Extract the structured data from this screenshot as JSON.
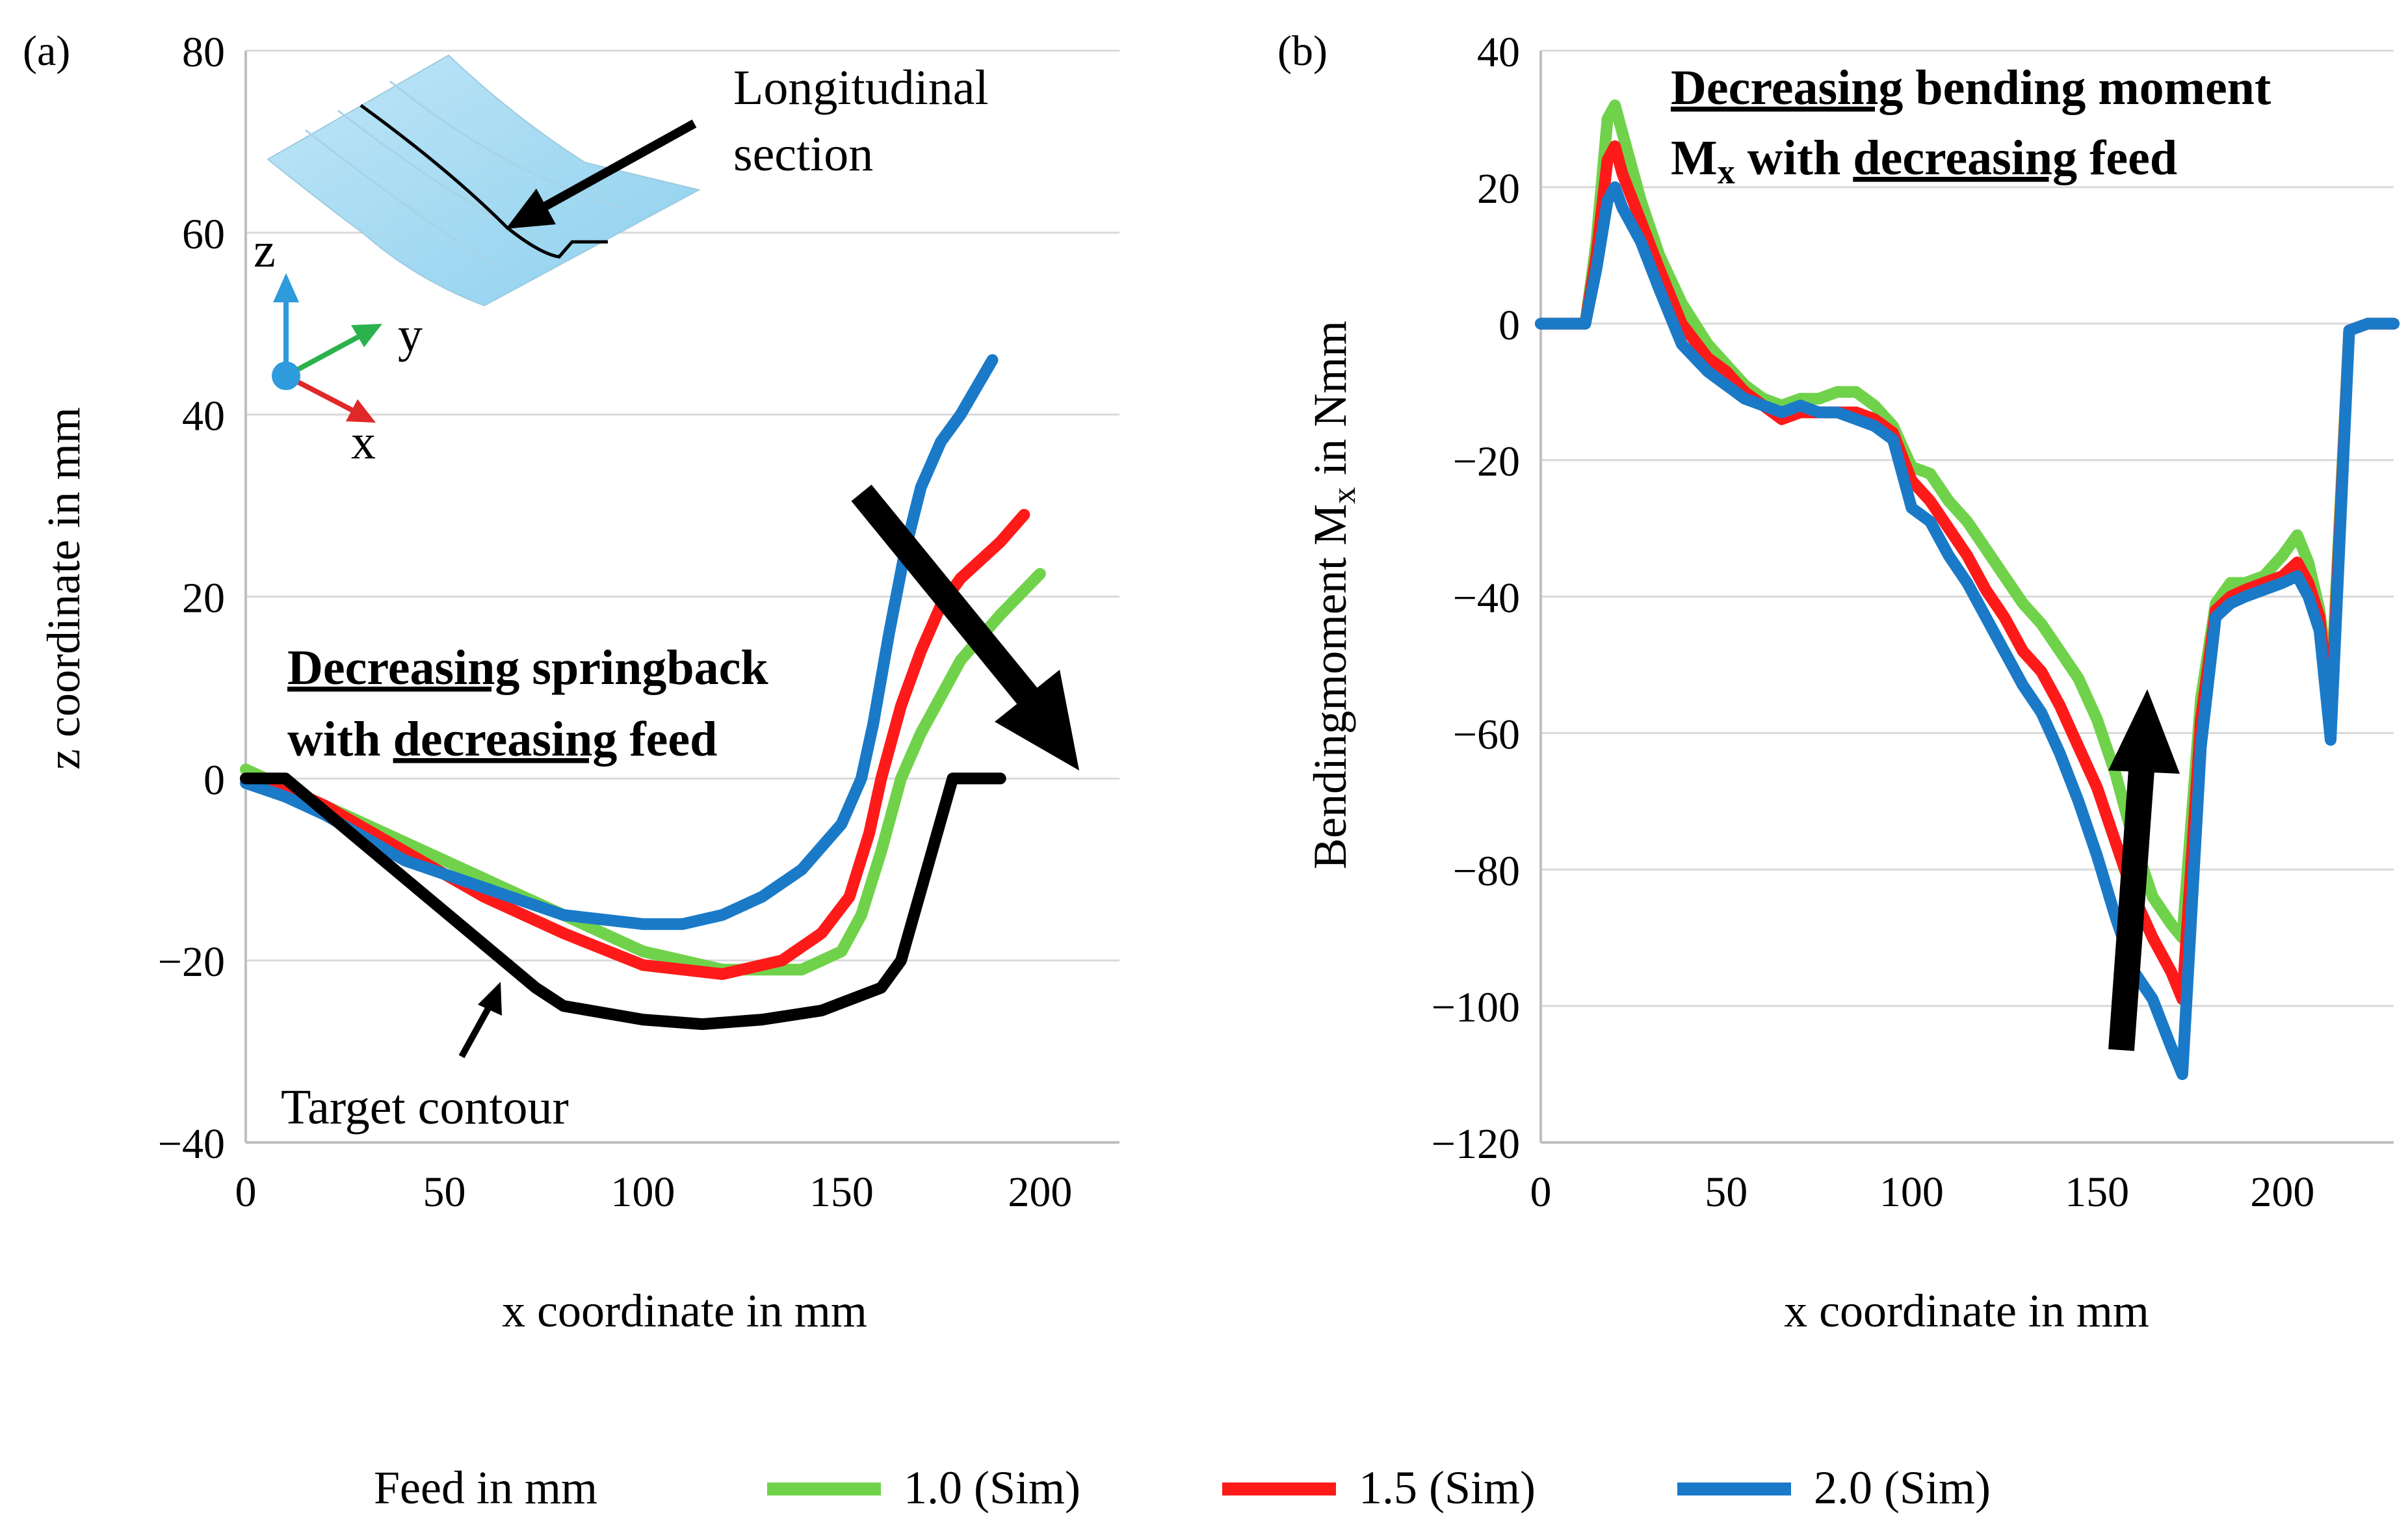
{
  "legend": {
    "title": "Feed in mm",
    "entries": [
      {
        "label": "1.0 (Sim)",
        "color": "#70D24B"
      },
      {
        "label": "1.5 (Sim)",
        "color": "#FF1A1A"
      },
      {
        "label": "2.0 (Sim)",
        "color": "#1A7AC8"
      }
    ]
  },
  "inset": {
    "label_line1": "Longitudinal",
    "label_line2": "section",
    "axis_x": "x",
    "axis_y": "y",
    "axis_z": "z"
  },
  "chart_data": [
    {
      "panel": "(a)",
      "type": "line",
      "xlabel": "x coordinate in mm",
      "ylabel": "z coordinate in mm",
      "xlim": [
        0,
        220
      ],
      "ylim": [
        -40,
        80
      ],
      "xticks": [
        0,
        50,
        100,
        150,
        200
      ],
      "yticks": [
        -40,
        -20,
        0,
        20,
        40,
        60,
        80
      ],
      "gridlines": "horizontal",
      "annotation": {
        "line1_underlined": "Decreasing",
        "line1_rest": " springback",
        "line2_prefix": "with ",
        "line2_underlined": "decreasing",
        "line2_rest": " feed"
      },
      "target_label": "Target contour",
      "series": [
        {
          "name": "1.0 (Sim)",
          "color": "#70D24B",
          "x": [
            0,
            10,
            20,
            40,
            60,
            80,
            100,
            120,
            140,
            150,
            155,
            160,
            165,
            170,
            175,
            180,
            190,
            200
          ],
          "y": [
            1,
            -1,
            -3,
            -7,
            -11,
            -15,
            -19,
            -21,
            -21,
            -19,
            -15,
            -8,
            0,
            5,
            9,
            13,
            18,
            22.5
          ]
        },
        {
          "name": "1.5 (Sim)",
          "color": "#FF1A1A",
          "x": [
            0,
            10,
            20,
            40,
            60,
            80,
            100,
            120,
            135,
            145,
            152,
            157,
            160,
            165,
            170,
            175,
            180,
            190,
            196
          ],
          "y": [
            0,
            -1,
            -3,
            -8,
            -13,
            -17,
            -20.5,
            -21.5,
            -20,
            -17,
            -13,
            -6,
            0,
            8,
            14,
            19,
            22,
            26,
            29
          ]
        },
        {
          "name": "2.0 (Sim)",
          "color": "#1A7AC8",
          "x": [
            0,
            10,
            20,
            40,
            60,
            80,
            100,
            110,
            120,
            130,
            140,
            150,
            155,
            158,
            162,
            166,
            170,
            175,
            180,
            188
          ],
          "y": [
            -0.5,
            -2,
            -4,
            -9,
            -12,
            -15,
            -16,
            -16,
            -15,
            -13,
            -10,
            -5,
            0,
            6,
            16,
            25,
            32,
            37,
            40,
            46
          ]
        },
        {
          "name": "Target contour",
          "color": "#000000",
          "x": [
            0,
            10,
            73,
            80,
            100,
            115,
            130,
            145,
            160,
            165,
            178,
            184,
            190
          ],
          "y": [
            0,
            0,
            -23,
            -25,
            -26.5,
            -27,
            -26.5,
            -25.5,
            -23,
            -20,
            0,
            0,
            0
          ]
        }
      ]
    },
    {
      "panel": "(b)",
      "type": "line",
      "xlabel": "x coordinate in mm",
      "ylabel": "Bendingmoment M",
      "ylabel_subscript": "x",
      "ylabel_suffix": " in Nmm",
      "xlim": [
        0,
        230
      ],
      "ylim": [
        -120,
        40
      ],
      "xticks": [
        0,
        50,
        100,
        150,
        200
      ],
      "yticks": [
        -120,
        -100,
        -80,
        -60,
        -40,
        -20,
        0,
        20,
        40
      ],
      "gridlines": "horizontal",
      "annotation": {
        "line1_underlined": "Decreasing",
        "line1_rest": " bending moment",
        "line2_prefix": "M",
        "line2_subscript": "x",
        "line2_mid": " with ",
        "line2_underlined": "decreasing",
        "line2_rest": " feed"
      },
      "series": [
        {
          "name": "1.0 (Sim)",
          "color": "#70D24B",
          "x": [
            0,
            12,
            15,
            18,
            20,
            22,
            27,
            32,
            38,
            45,
            50,
            55,
            60,
            65,
            70,
            75,
            80,
            85,
            90,
            95,
            100,
            105,
            110,
            115,
            120,
            125,
            130,
            135,
            140,
            145,
            150,
            155,
            160,
            165,
            170,
            173,
            178,
            182,
            186,
            190,
            195,
            200,
            204,
            207,
            210,
            213,
            218,
            223,
            230
          ],
          "y": [
            0,
            0,
            12,
            30,
            32,
            28,
            18,
            10,
            3,
            -3,
            -6,
            -9,
            -11,
            -12,
            -11,
            -11,
            -10,
            -10,
            -12,
            -15,
            -21,
            -22,
            -26,
            -29,
            -33,
            -37,
            -41,
            -44,
            -48,
            -52,
            -58,
            -66,
            -76,
            -84,
            -88,
            -90,
            -55,
            -41,
            -38,
            -38,
            -37,
            -34,
            -31,
            -35,
            -42,
            -55,
            -1,
            0,
            0
          ]
        },
        {
          "name": "1.5 (Sim)",
          "color": "#FF1A1A",
          "x": [
            0,
            12,
            15,
            18,
            20,
            22,
            27,
            32,
            38,
            45,
            50,
            55,
            60,
            65,
            70,
            75,
            80,
            85,
            90,
            95,
            100,
            105,
            110,
            115,
            120,
            125,
            130,
            135,
            140,
            145,
            150,
            155,
            160,
            165,
            170,
            173,
            178,
            182,
            186,
            190,
            195,
            200,
            204,
            207,
            210,
            213,
            218,
            223,
            230
          ],
          "y": [
            0,
            0,
            10,
            24,
            26,
            22,
            15,
            8,
            0,
            -5,
            -7,
            -10,
            -12,
            -14,
            -13,
            -13,
            -13,
            -13,
            -14,
            -16,
            -23,
            -26,
            -30,
            -34,
            -39,
            -43,
            -48,
            -51,
            -56,
            -62,
            -68,
            -76,
            -84,
            -90,
            -95,
            -99,
            -58,
            -42,
            -40,
            -39,
            -38,
            -37,
            -35,
            -38,
            -43,
            -58,
            -1,
            0,
            0
          ]
        },
        {
          "name": "2.0 (Sim)",
          "color": "#1A7AC8",
          "x": [
            0,
            12,
            15,
            18,
            20,
            22,
            27,
            32,
            38,
            45,
            50,
            55,
            60,
            65,
            70,
            75,
            80,
            85,
            90,
            95,
            100,
            105,
            110,
            115,
            120,
            125,
            130,
            135,
            140,
            145,
            150,
            155,
            160,
            165,
            170,
            173,
            178,
            182,
            186,
            190,
            195,
            200,
            204,
            207,
            210,
            213,
            218,
            223,
            230
          ],
          "y": [
            0,
            0,
            8,
            18,
            20,
            17,
            12,
            5,
            -3,
            -7,
            -9,
            -11,
            -12,
            -13,
            -12,
            -13,
            -13,
            -14,
            -15,
            -17,
            -27,
            -29,
            -34,
            -38,
            -43,
            -48,
            -53,
            -57,
            -63,
            -70,
            -78,
            -87,
            -95,
            -99,
            -106,
            -110,
            -62,
            -43,
            -41,
            -40,
            -39,
            -38,
            -37,
            -40,
            -45,
            -61,
            -1,
            0,
            0
          ]
        }
      ]
    }
  ]
}
